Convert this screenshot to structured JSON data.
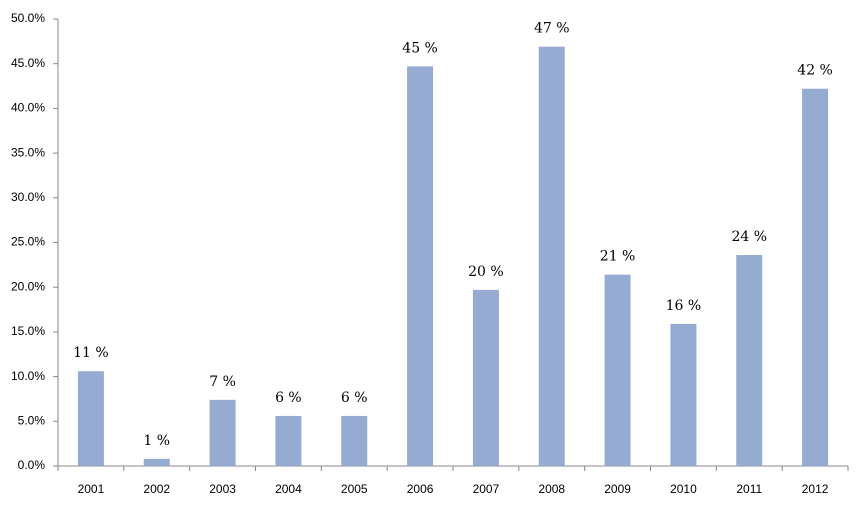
{
  "chart_data": {
    "type": "bar",
    "categories": [
      "2001",
      "2002",
      "2003",
      "2004",
      "2005",
      "2006",
      "2007",
      "2008",
      "2009",
      "2010",
      "2011",
      "2012"
    ],
    "values": [
      10.6,
      0.8,
      7.4,
      5.6,
      5.6,
      44.7,
      19.7,
      46.9,
      21.4,
      15.9,
      23.6,
      42.2
    ],
    "value_labels": [
      "11 %",
      "1 %",
      "7 %",
      "6 %",
      "6 %",
      "45 %",
      "20 %",
      "47 %",
      "21 %",
      "16 %",
      "24 %",
      "42 %"
    ],
    "color": "#95abd2",
    "ylim": [
      0,
      50
    ],
    "yticks": [
      {
        "value": 0,
        "label": "0.0%"
      },
      {
        "value": 5,
        "label": "5.0%"
      },
      {
        "value": 10,
        "label": "10.0%"
      },
      {
        "value": 15,
        "label": "15.0%"
      },
      {
        "value": 20,
        "label": "20.0%"
      },
      {
        "value": 25,
        "label": "25.0%"
      },
      {
        "value": 30,
        "label": "30.0%"
      },
      {
        "value": 35,
        "label": "35.0%"
      },
      {
        "value": 40,
        "label": "40.0%"
      },
      {
        "value": 45,
        "label": "45.0%"
      },
      {
        "value": 50,
        "label": "50.0%"
      }
    ],
    "grid": false
  }
}
